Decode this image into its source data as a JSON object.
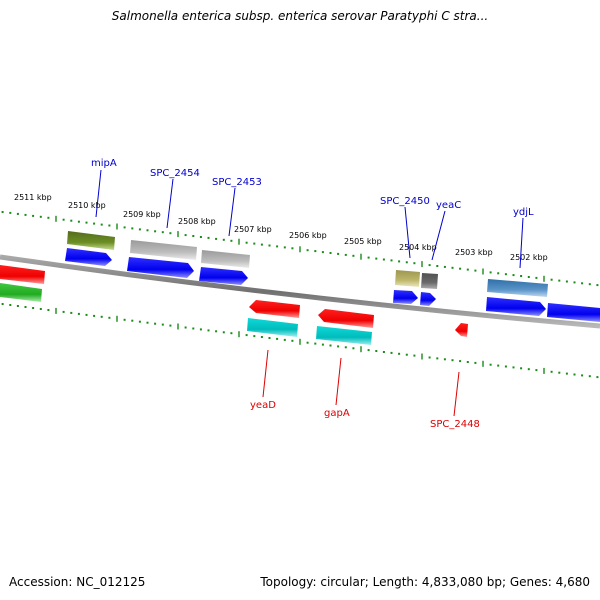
{
  "title": "Salmonella enterica subsp. enterica serovar Paratyphi C stra...",
  "accession": "Accession: NC_012125",
  "topology": "Topology: circular; Length: 4,833,080 bp; Genes: 4,680",
  "scale_labels": [
    "2511 kbp",
    "2510 kbp",
    "2509 kbp",
    "2508 kbp",
    "2507 kbp",
    "2506 kbp",
    "2505 kbp",
    "2504 kbp",
    "2503 kbp",
    "2502 kbp"
  ],
  "gene_labels_top": [
    "mipA",
    "SPC_2454",
    "SPC_2453",
    "SPC_2450",
    "yeaC",
    "ydjL"
  ],
  "gene_labels_bottom": [
    "yeaD",
    "gapA",
    "SPC_2448"
  ],
  "colors": {
    "backbone": "#808080",
    "tick": "#1a8c1a",
    "top_label": "#0000cc",
    "bottom_label": "#dd0000",
    "cds_blue": "#0000ee",
    "gene_red": "#ee0000",
    "gene_cyan": "#00c8c8",
    "gene_green": "#33bb33",
    "gene_olive": "#6b8e23",
    "gene_gray": "#b8b8b8",
    "gene_khaki": "#bdb76b",
    "gene_darkgray": "#606060",
    "gene_steelblue": "#4682b4"
  }
}
